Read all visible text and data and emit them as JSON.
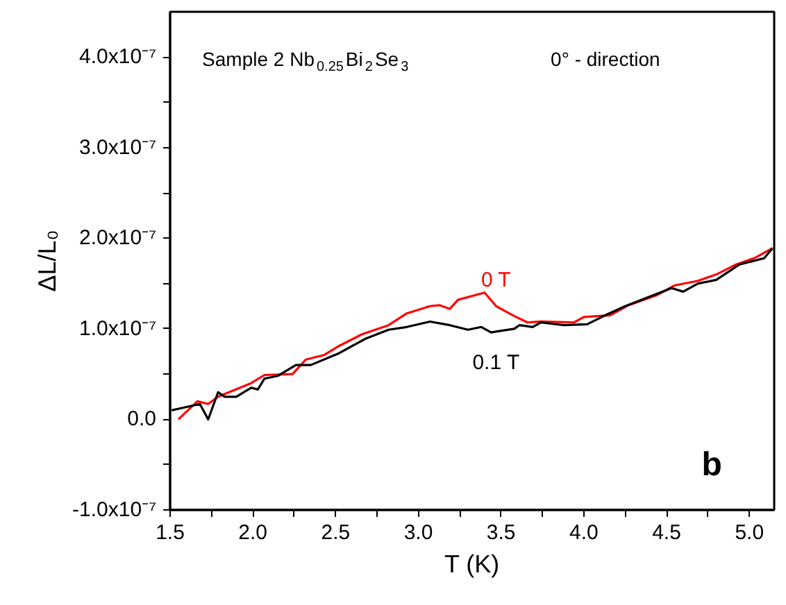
{
  "chart_data": {
    "type": "line",
    "xlabel": "T (K)",
    "ylabel": "ΔL/L₀",
    "x": [
      1.51,
      1.55,
      1.665,
      1.68,
      1.73,
      1.79,
      1.83,
      1.9,
      1.99,
      2.03,
      2.07,
      2.15,
      2.24,
      2.26,
      2.32,
      2.35,
      2.43,
      2.52,
      2.66,
      2.68,
      2.82,
      2.93,
      3.07,
      3.13,
      3.19,
      3.24,
      3.3,
      3.38,
      3.4,
      3.44,
      3.47,
      3.52,
      3.58,
      3.61,
      3.66,
      3.69,
      3.74,
      3.88,
      3.94,
      4.0,
      4.02,
      4.13,
      4.16,
      4.25,
      4.27,
      4.39,
      4.44,
      4.53,
      4.55,
      4.6,
      4.69,
      4.8,
      4.92,
      4.94,
      5.03,
      5.09,
      5.14
    ],
    "series": [
      {
        "name": "0 T",
        "color": "#ff0000",
        "values": [
          null,
          0,
          2e-08,
          null,
          1.7e-08,
          2.5e-08,
          null,
          null,
          4e-08,
          null,
          4.9e-08,
          null,
          5e-08,
          null,
          6.6e-08,
          null,
          7.1e-08,
          8.1e-08,
          9.4e-08,
          null,
          1.04e-07,
          1.17e-07,
          1.25e-07,
          1.26e-07,
          1.22e-07,
          1.32e-07,
          null,
          null,
          1.4e-07,
          null,
          1.25e-07,
          1.2e-07,
          1.14e-07,
          null,
          1.07e-07,
          null,
          1.08e-07,
          null,
          1.07e-07,
          1.13e-07,
          null,
          null,
          1.15e-07,
          null,
          1.26e-07,
          null,
          1.37e-07,
          null,
          1.48e-07,
          null,
          1.53e-07,
          1.6e-07,
          1.71e-07,
          null,
          1.78e-07,
          null,
          1.89e-07
        ]
      },
      {
        "name": "0.1 T",
        "color": "#000000",
        "values": [
          1e-08,
          null,
          null,
          1.7e-08,
          0,
          3e-08,
          2.5e-08,
          2.5e-08,
          3.5e-08,
          3.3e-08,
          4.5e-08,
          4.8e-08,
          null,
          6e-08,
          null,
          6e-08,
          null,
          7.3e-08,
          null,
          8.9e-08,
          9.9e-08,
          1.02e-07,
          1.08e-07,
          null,
          1.04e-07,
          null,
          9.9e-08,
          1.02e-07,
          null,
          9.6e-08,
          9.7e-08,
          null,
          1e-07,
          1.04e-07,
          null,
          1.02e-07,
          1.07e-07,
          1.04e-07,
          null,
          null,
          1.05e-07,
          1.15e-07,
          null,
          1.25e-07,
          null,
          1.35e-07,
          null,
          1.45e-07,
          null,
          1.41e-07,
          1.5e-07,
          1.54e-07,
          null,
          1.71e-07,
          null,
          1.78e-07,
          1.89e-07
        ]
      }
    ],
    "xlim": [
      1.5,
      5.15
    ],
    "ylim": [
      -1e-07,
      4.5e-07
    ],
    "xticks": [
      1.5,
      {
        "value": 1.75,
        "label": null
      },
      {
        "value": 2,
        "label": "2.0"
      },
      {
        "value": 2.25,
        "label": null
      },
      2.5,
      {
        "value": 2.75,
        "label": null
      },
      {
        "value": 3,
        "label": "3.0"
      },
      {
        "value": 3.25,
        "label": null
      },
      3.5,
      {
        "value": 3.75,
        "label": null
      },
      {
        "value": 4,
        "label": "4.0"
      },
      {
        "value": 4.25,
        "label": null
      },
      4.5,
      {
        "value": 4.75,
        "label": null
      },
      {
        "value": 5,
        "label": "5.0"
      }
    ],
    "yticks": [
      {
        "value": -1e-07,
        "label": "-1.0x10⁻⁷"
      },
      {
        "value": -5e-08,
        "label": null
      },
      {
        "value": 0,
        "label": "0.0"
      },
      {
        "value": 5e-08,
        "label": null
      },
      {
        "value": 1e-07,
        "label": "1.0x10⁻⁷"
      },
      {
        "value": 1.5e-07,
        "label": null
      },
      {
        "value": 2e-07,
        "label": "2.0x10⁻⁷"
      },
      {
        "value": 2.5e-07,
        "label": null
      },
      {
        "value": 3e-07,
        "label": "3.0x10⁻⁷"
      },
      {
        "value": 3.5e-07,
        "label": null
      },
      {
        "value": 4e-07,
        "label": "4.0x10⁻⁷"
      }
    ],
    "annotations": [
      "Sample 2   Nb$_{0.25}$Bi$_{2}$Se$_{3}$",
      "0° - direction",
      "b"
    ],
    "grid": false,
    "marker": "none",
    "line_style": "solid"
  }
}
